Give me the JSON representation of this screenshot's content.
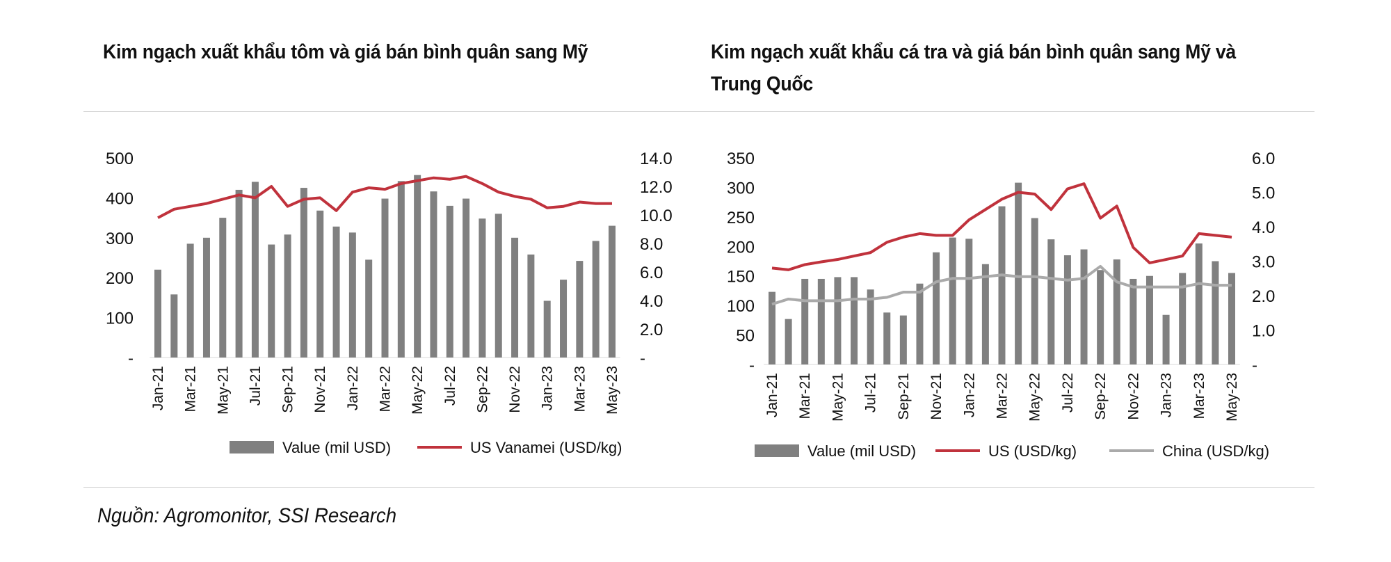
{
  "footer": {
    "source": "Nguồn: Agromonitor, SSI Research"
  },
  "colors": {
    "bar": "#808080",
    "us_line": "#c0323c",
    "china_line": "#aaaaaa"
  },
  "chart_data": [
    {
      "type": "bar+line",
      "title": "Kim ngạch xuất khẩu tôm và giá bán bình quân sang Mỹ",
      "categories": [
        "Jan-21",
        "Feb-21",
        "Mar-21",
        "Apr-21",
        "May-21",
        "Jun-21",
        "Jul-21",
        "Aug-21",
        "Sep-21",
        "Oct-21",
        "Nov-21",
        "Dec-21",
        "Jan-22",
        "Feb-22",
        "Mar-22",
        "Apr-22",
        "May-22",
        "Jun-22",
        "Jul-22",
        "Aug-22",
        "Sep-22",
        "Oct-22",
        "Nov-22",
        "Dec-22",
        "Jan-23",
        "Feb-23",
        "Mar-23",
        "Apr-23",
        "May-23"
      ],
      "left_axis": {
        "ylim": [
          0,
          500
        ],
        "ticks": [
          "-",
          "100",
          "200",
          "300",
          "400",
          "500"
        ]
      },
      "right_axis": {
        "ylim": [
          0,
          14
        ],
        "ticks": [
          "-",
          "2.0",
          "4.0",
          "6.0",
          "8.0",
          "10.0",
          "12.0",
          "14.0"
        ]
      },
      "series": [
        {
          "name": "Value (mil USD)",
          "kind": "bar",
          "axis": "left",
          "values": [
            220,
            158,
            285,
            300,
            350,
            420,
            440,
            283,
            308,
            425,
            368,
            328,
            313,
            245,
            398,
            442,
            457,
            416,
            380,
            398,
            348,
            360,
            300,
            258,
            142,
            195,
            242,
            292,
            330
          ]
        },
        {
          "name": "US Vanamei (USD/kg)",
          "kind": "line",
          "axis": "right",
          "values": [
            9.8,
            10.4,
            10.6,
            10.8,
            11.1,
            11.4,
            11.2,
            12.0,
            10.6,
            11.1,
            11.2,
            10.3,
            11.6,
            11.9,
            11.8,
            12.2,
            12.4,
            12.6,
            12.5,
            12.7,
            12.2,
            11.6,
            11.3,
            11.1,
            10.5,
            10.6,
            10.9,
            10.8,
            10.8
          ]
        }
      ],
      "legend": "bottom"
    },
    {
      "type": "bar+line",
      "title_lines": [
        "Kim ngạch xuất khẩu cá tra và giá bán bình quân sang Mỹ và",
        "Trung Quốc"
      ],
      "categories": [
        "Jan-21",
        "Feb-21",
        "Mar-21",
        "Apr-21",
        "May-21",
        "Jun-21",
        "Jul-21",
        "Aug-21",
        "Sep-21",
        "Oct-21",
        "Nov-21",
        "Dec-21",
        "Jan-22",
        "Feb-22",
        "Mar-22",
        "Apr-22",
        "May-22",
        "Jun-22",
        "Jul-22",
        "Aug-22",
        "Sep-22",
        "Oct-22",
        "Nov-22",
        "Dec-22",
        "Jan-23",
        "Feb-23",
        "Mar-23",
        "Apr-23",
        "May-23"
      ],
      "left_axis": {
        "ylim": [
          0,
          350
        ],
        "ticks": [
          "-",
          "50",
          "100",
          "150",
          "200",
          "250",
          "300",
          "350"
        ]
      },
      "right_axis": {
        "ylim": [
          0,
          6
        ],
        "ticks": [
          "-",
          "1.0",
          "2.0",
          "3.0",
          "4.0",
          "5.0",
          "6.0"
        ]
      },
      "series": [
        {
          "name": "Value (mil USD)",
          "kind": "bar",
          "axis": "left",
          "values": [
            123,
            77,
            145,
            145,
            148,
            148,
            127,
            88,
            83,
            137,
            190,
            215,
            213,
            170,
            268,
            308,
            248,
            212,
            185,
            195,
            160,
            178,
            145,
            150,
            84,
            155,
            205,
            175,
            155
          ]
        },
        {
          "name": "US (USD/kg)",
          "kind": "line",
          "axis": "right",
          "values": [
            2.8,
            2.75,
            2.9,
            2.98,
            3.05,
            3.15,
            3.25,
            3.55,
            3.7,
            3.8,
            3.75,
            3.75,
            4.2,
            4.5,
            4.8,
            5.0,
            4.95,
            4.5,
            5.1,
            5.25,
            4.25,
            4.6,
            3.4,
            2.95,
            3.05,
            3.15,
            3.8,
            3.75,
            3.7
          ]
        },
        {
          "name": "China (USD/kg)",
          "kind": "line",
          "axis": "right",
          "values": [
            1.75,
            1.9,
            1.85,
            1.85,
            1.85,
            1.9,
            1.9,
            1.95,
            2.1,
            2.1,
            2.4,
            2.5,
            2.5,
            2.55,
            2.6,
            2.55,
            2.55,
            2.5,
            2.45,
            2.5,
            2.85,
            2.4,
            2.25,
            2.25,
            2.25,
            2.25,
            2.35,
            2.3,
            2.3
          ]
        }
      ],
      "legend": "bottom"
    }
  ]
}
